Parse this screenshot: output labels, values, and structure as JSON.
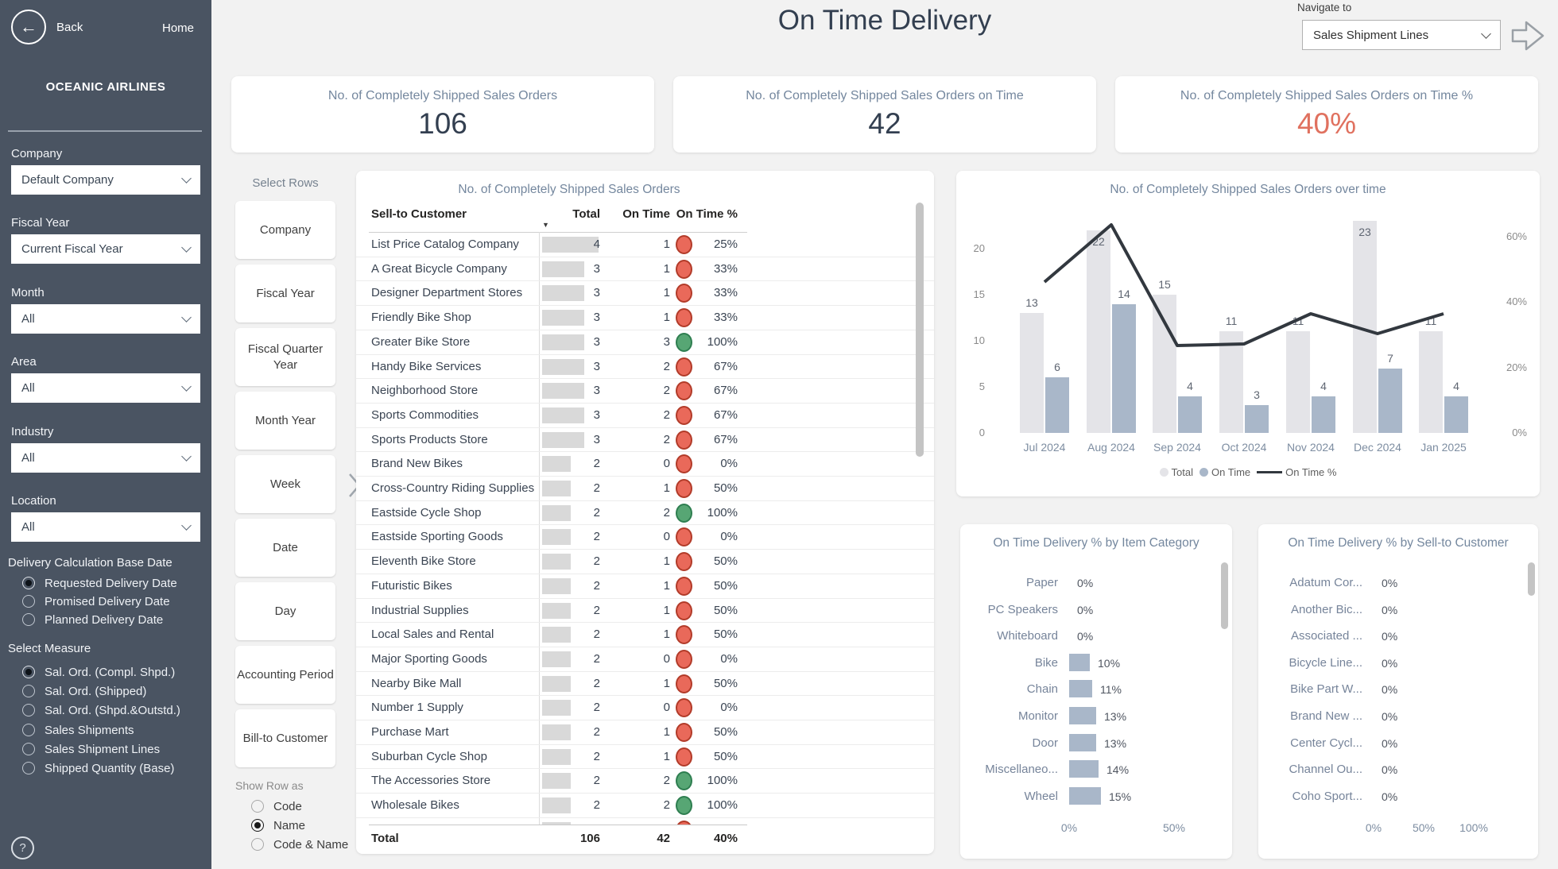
{
  "sidebar": {
    "back_label": "Back",
    "home_label": "Home",
    "brand": "OCEANIC AIRLINES",
    "filters": [
      {
        "label": "Company",
        "value": "Default Company"
      },
      {
        "label": "Fiscal Year",
        "value": "Current Fiscal Year"
      },
      {
        "label": "Month",
        "value": "All"
      },
      {
        "label": "Area",
        "value": "All"
      },
      {
        "label": "Industry",
        "value": "All"
      },
      {
        "label": "Location",
        "value": "All"
      }
    ],
    "delivery_base": {
      "label": "Delivery Calculation Base Date",
      "options": [
        "Requested Delivery Date",
        "Promised Delivery Date",
        "Planned Delivery Date"
      ],
      "selected": 0
    },
    "measure": {
      "label": "Select Measure",
      "options": [
        "Sal. Ord. (Compl. Shpd.)",
        "Sal. Ord. (Shipped)",
        "Sal. Ord. (Shpd.&Outstd.)",
        "Sales Shipments",
        "Sales Shipment Lines",
        "Shipped Quantity (Base)"
      ],
      "selected": 0
    },
    "help_label": "?"
  },
  "header": {
    "title": "On Time Delivery",
    "navigate_label": "Navigate to",
    "navigate_value": "Sales Shipment Lines"
  },
  "kpis": [
    {
      "label": "No. of Completely Shipped Sales Orders",
      "value": "106"
    },
    {
      "label": "No. of Completely Shipped Sales Orders on Time",
      "value": "42"
    },
    {
      "label": "No. of Completely Shipped Sales Orders on Time %",
      "value": "40%",
      "value_color": "#e0715f"
    }
  ],
  "select_rows": {
    "label": "Select Rows",
    "buttons": [
      "Company",
      "Fiscal Year",
      "Fiscal Quarter Year",
      "Month Year",
      "Week",
      "Date",
      "Day",
      "Accounting Period",
      "Bill-to Customer"
    ],
    "show_row_as": {
      "label": "Show Row as",
      "options": [
        "Code",
        "Name",
        "Code & Name"
      ],
      "selected": 1
    }
  },
  "table": {
    "title": "No. of Completely Shipped Sales Orders",
    "columns": [
      "Sell-to Customer",
      "Total",
      "On Time",
      "On Time %"
    ],
    "status_colors": {
      "red": "#e9695a",
      "green": "#57a674"
    },
    "rows": [
      {
        "name": "List Price Catalog Company",
        "total": 4,
        "on_time": 1,
        "pct": "25%",
        "status": "red"
      },
      {
        "name": "A Great Bicycle Company",
        "total": 3,
        "on_time": 1,
        "pct": "33%",
        "status": "red"
      },
      {
        "name": "Designer Department Stores",
        "total": 3,
        "on_time": 1,
        "pct": "33%",
        "status": "red"
      },
      {
        "name": "Friendly Bike Shop",
        "total": 3,
        "on_time": 1,
        "pct": "33%",
        "status": "red"
      },
      {
        "name": "Greater Bike Store",
        "total": 3,
        "on_time": 3,
        "pct": "100%",
        "status": "green"
      },
      {
        "name": "Handy Bike Services",
        "total": 3,
        "on_time": 2,
        "pct": "67%",
        "status": "red"
      },
      {
        "name": "Neighborhood Store",
        "total": 3,
        "on_time": 2,
        "pct": "67%",
        "status": "red"
      },
      {
        "name": "Sports Commodities",
        "total": 3,
        "on_time": 2,
        "pct": "67%",
        "status": "red"
      },
      {
        "name": "Sports Products Store",
        "total": 3,
        "on_time": 2,
        "pct": "67%",
        "status": "red"
      },
      {
        "name": "Brand New Bikes",
        "total": 2,
        "on_time": 0,
        "pct": "0%",
        "status": "red"
      },
      {
        "name": "Cross-Country Riding Supplies",
        "total": 2,
        "on_time": 1,
        "pct": "50%",
        "status": "red"
      },
      {
        "name": "Eastside Cycle Shop",
        "total": 2,
        "on_time": 2,
        "pct": "100%",
        "status": "green"
      },
      {
        "name": "Eastside Sporting Goods",
        "total": 2,
        "on_time": 0,
        "pct": "0%",
        "status": "red"
      },
      {
        "name": "Eleventh Bike Store",
        "total": 2,
        "on_time": 1,
        "pct": "50%",
        "status": "red"
      },
      {
        "name": "Futuristic Bikes",
        "total": 2,
        "on_time": 1,
        "pct": "50%",
        "status": "red"
      },
      {
        "name": "Industrial Supplies",
        "total": 2,
        "on_time": 1,
        "pct": "50%",
        "status": "red"
      },
      {
        "name": "Local Sales and Rental",
        "total": 2,
        "on_time": 1,
        "pct": "50%",
        "status": "red"
      },
      {
        "name": "Major Sporting Goods",
        "total": 2,
        "on_time": 0,
        "pct": "0%",
        "status": "red"
      },
      {
        "name": "Nearby Bike Mall",
        "total": 2,
        "on_time": 1,
        "pct": "50%",
        "status": "red"
      },
      {
        "name": "Number 1 Supply",
        "total": 2,
        "on_time": 0,
        "pct": "0%",
        "status": "red"
      },
      {
        "name": "Purchase Mart",
        "total": 2,
        "on_time": 1,
        "pct": "50%",
        "status": "red"
      },
      {
        "name": "Suburban Cycle Shop",
        "total": 2,
        "on_time": 1,
        "pct": "50%",
        "status": "red"
      },
      {
        "name": "The Accessories Store",
        "total": 2,
        "on_time": 2,
        "pct": "100%",
        "status": "green"
      },
      {
        "name": "Wholesale Bikes",
        "total": 2,
        "on_time": 2,
        "pct": "100%",
        "status": "green"
      },
      {
        "name": "",
        "total": 2,
        "on_time": "",
        "pct": "",
        "status": "red"
      }
    ],
    "total_row": {
      "label": "Total",
      "total": "106",
      "on_time": "42",
      "pct": "40%"
    }
  },
  "chart_data": [
    {
      "type": "bar",
      "subtype": "grouped-bars-with-line",
      "title": "No. of Completely Shipped Sales Orders over time",
      "categories": [
        "Jul 2024",
        "Aug 2024",
        "Sep 2024",
        "Oct 2024",
        "Nov 2024",
        "Dec 2024",
        "Jan 2025"
      ],
      "series": [
        {
          "name": "Total",
          "values": [
            13,
            22,
            15,
            11,
            11,
            23,
            11
          ],
          "color": "#e4e4e8"
        },
        {
          "name": "On Time",
          "values": [
            6,
            14,
            4,
            3,
            4,
            7,
            4
          ],
          "color": "#a9b7c9"
        }
      ],
      "line": {
        "name": "On Time %",
        "values_pct": [
          46.2,
          63.6,
          26.7,
          27.3,
          36.4,
          30.4,
          36.4
        ],
        "color": "#32383f",
        "axis": "right"
      },
      "left_axis": {
        "ticks": [
          0,
          5,
          10,
          15,
          20
        ]
      },
      "right_axis": {
        "ticks_pct": [
          0,
          20,
          40,
          60
        ]
      },
      "legend": [
        "Total",
        "On Time",
        "On Time %"
      ],
      "legend_position": "bottom"
    },
    {
      "type": "bar",
      "subtype": "horizontal",
      "title": "On Time Delivery % by Item Category",
      "categories": [
        "Paper",
        "PC Speakers",
        "Whiteboard",
        "Bike",
        "Chain",
        "Monitor",
        "Door",
        "Miscellaneo...",
        "Wheel"
      ],
      "values": [
        0,
        0,
        0,
        10,
        11,
        13,
        13,
        14,
        15
      ],
      "value_labels": [
        "0%",
        "0%",
        "0%",
        "10%",
        "11%",
        "13%",
        "13%",
        "14%",
        "15%"
      ],
      "x_ticks_pct": [
        0,
        50
      ],
      "bar_color": "#a9b7c9"
    },
    {
      "type": "bar",
      "subtype": "horizontal",
      "title": "On Time Delivery % by Sell-to Customer",
      "categories": [
        "Adatum Cor...",
        "Another Bic...",
        "Associated ...",
        "Bicycle Line...",
        "Bike Part W...",
        "Brand New ...",
        "Center Cycl...",
        "Channel Ou...",
        "Coho Sport..."
      ],
      "values": [
        0,
        0,
        0,
        0,
        0,
        0,
        0,
        0,
        0
      ],
      "value_labels": [
        "0%",
        "0%",
        "0%",
        "0%",
        "0%",
        "0%",
        "0%",
        "0%",
        "0%"
      ],
      "x_ticks_pct": [
        0,
        50,
        100
      ],
      "bar_color": "#a9b7c9"
    }
  ],
  "colors": {
    "sidebar_bg": "#4a5462",
    "page_bg": "#f2f2f2",
    "title_navy": "#333f50",
    "muted_blue": "#74879e",
    "salmon": "#e0715f",
    "table_bar": "#d9d9d9",
    "status_red": "#e9695a",
    "status_green": "#57a674"
  }
}
